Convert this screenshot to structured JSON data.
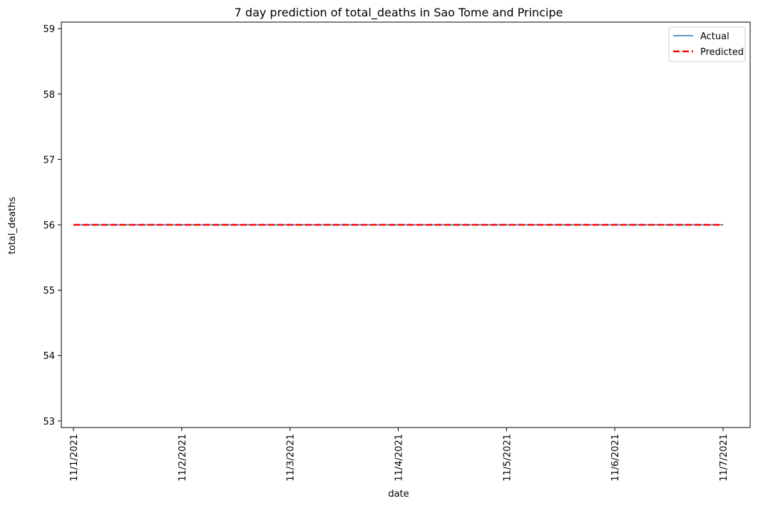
{
  "chart_data": {
    "type": "line",
    "title": "7 day prediction of total_deaths in Sao Tome and Principe",
    "xlabel": "date",
    "ylabel": "total_deaths",
    "x": [
      "11/1/2021",
      "11/2/2021",
      "11/3/2021",
      "11/4/2021",
      "11/5/2021",
      "11/6/2021",
      "11/7/2021"
    ],
    "ylim": [
      52.9,
      59.1
    ],
    "yticks": [
      53,
      54,
      55,
      56,
      57,
      58,
      59
    ],
    "grid": false,
    "legend_position": "top-right",
    "series": [
      {
        "name": "Actual",
        "values": [
          56,
          56,
          56,
          56,
          56,
          56,
          56
        ],
        "color": "#1f77b4",
        "style": "solid"
      },
      {
        "name": "Predicted",
        "values": [
          56,
          56,
          56,
          56,
          56,
          56,
          56
        ],
        "color": "#ff0000",
        "style": "dashed"
      }
    ]
  }
}
